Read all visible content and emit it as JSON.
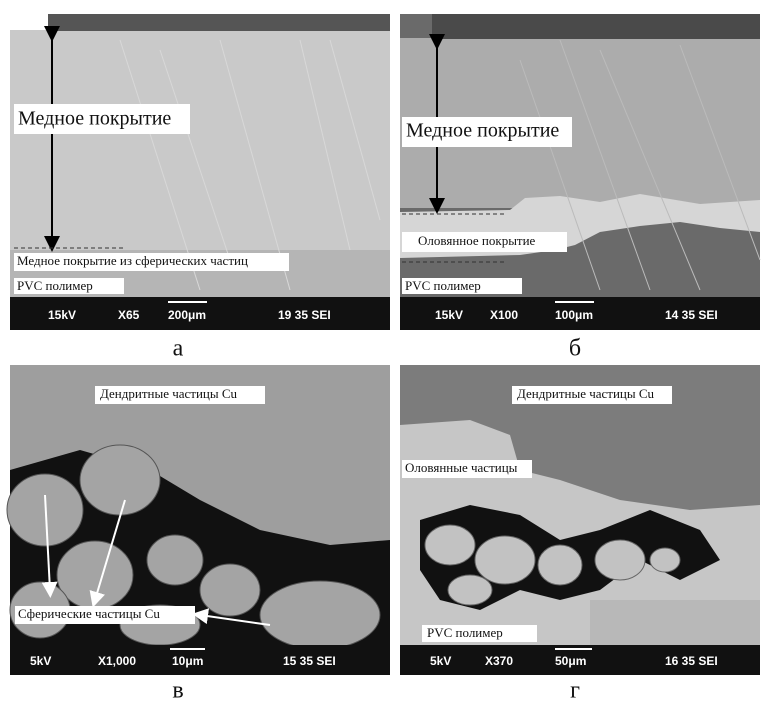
{
  "panels": [
    {
      "caption": "а",
      "annotations": [
        "Медное покрытие",
        "Медное покрытие  из сферических частиц",
        "PVC полимер"
      ],
      "scale_bar": {
        "voltage": "15kV",
        "magnification": "X65",
        "scale": "200μm",
        "info": "19 35 SEI"
      }
    },
    {
      "caption": "б",
      "annotations": [
        "Медное покрытие",
        "Оловянное покрытие",
        "PVC полимер"
      ],
      "scale_bar": {
        "voltage": "15kV",
        "magnification": "X100",
        "scale": "100μm",
        "info": "14 35 SEI"
      }
    },
    {
      "caption": "в",
      "annotations": [
        "Дендритные частицы Cu",
        "Сферические частицы Cu"
      ],
      "scale_bar": {
        "voltage": "5kV",
        "magnification": "X1,000",
        "scale": "10μm",
        "info": "15 35 SEI"
      }
    },
    {
      "caption": "г",
      "annotations": [
        "Дендритные частицы Cu",
        "Оловянные частицы",
        "PVC полимер"
      ],
      "scale_bar": {
        "voltage": "5kV",
        "magnification": "X370",
        "scale": "50μm",
        "info": "16 35 SEI"
      }
    }
  ]
}
